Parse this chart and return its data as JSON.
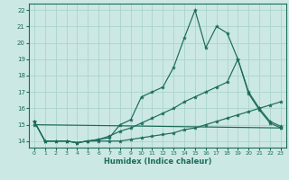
{
  "xlabel": "Humidex (Indice chaleur)",
  "bg_color": "#cce8e4",
  "grid_color": "#aad4cc",
  "line_color": "#1a6b5a",
  "xlim": [
    -0.5,
    23.5
  ],
  "ylim": [
    13.6,
    22.4
  ],
  "xticks": [
    0,
    1,
    2,
    3,
    4,
    5,
    6,
    7,
    8,
    9,
    10,
    11,
    12,
    13,
    14,
    15,
    16,
    17,
    18,
    19,
    20,
    21,
    22,
    23
  ],
  "yticks": [
    14,
    15,
    16,
    17,
    18,
    19,
    20,
    21,
    22
  ],
  "lines": [
    {
      "x": [
        0,
        1,
        2,
        3,
        4,
        5,
        6,
        7,
        8,
        9,
        10,
        11,
        12,
        13,
        14,
        15,
        16,
        17,
        18,
        19,
        20,
        21,
        22,
        23
      ],
      "y": [
        15.2,
        14.0,
        14.0,
        14.0,
        13.9,
        14.0,
        14.1,
        14.2,
        15.0,
        15.3,
        16.7,
        17.0,
        17.3,
        18.5,
        20.3,
        22.0,
        19.7,
        21.0,
        20.6,
        19.0,
        16.9,
        15.9,
        15.1,
        14.8
      ]
    },
    {
      "x": [
        0,
        23
      ],
      "y": [
        15.0,
        14.8
      ]
    },
    {
      "x": [
        0,
        1,
        3,
        4,
        5,
        6,
        7,
        8,
        9,
        10,
        11,
        12,
        13,
        14,
        15,
        16,
        17,
        18,
        19,
        20,
        21,
        22,
        23
      ],
      "y": [
        15.2,
        14.0,
        14.0,
        13.9,
        14.0,
        14.1,
        14.3,
        14.6,
        14.8,
        15.1,
        15.4,
        15.7,
        16.0,
        16.4,
        16.7,
        17.0,
        17.3,
        17.6,
        19.0,
        17.0,
        16.0,
        15.2,
        14.9
      ]
    },
    {
      "x": [
        0,
        1,
        2,
        3,
        4,
        5,
        6,
        7,
        8,
        9,
        10,
        11,
        12,
        13,
        14,
        15,
        16,
        17,
        18,
        19,
        20,
        21,
        22,
        23
      ],
      "y": [
        15.2,
        14.0,
        14.0,
        14.0,
        13.9,
        14.0,
        14.0,
        14.0,
        14.0,
        14.1,
        14.2,
        14.3,
        14.4,
        14.5,
        14.7,
        14.8,
        15.0,
        15.2,
        15.4,
        15.6,
        15.8,
        16.0,
        16.2,
        16.4
      ]
    }
  ]
}
